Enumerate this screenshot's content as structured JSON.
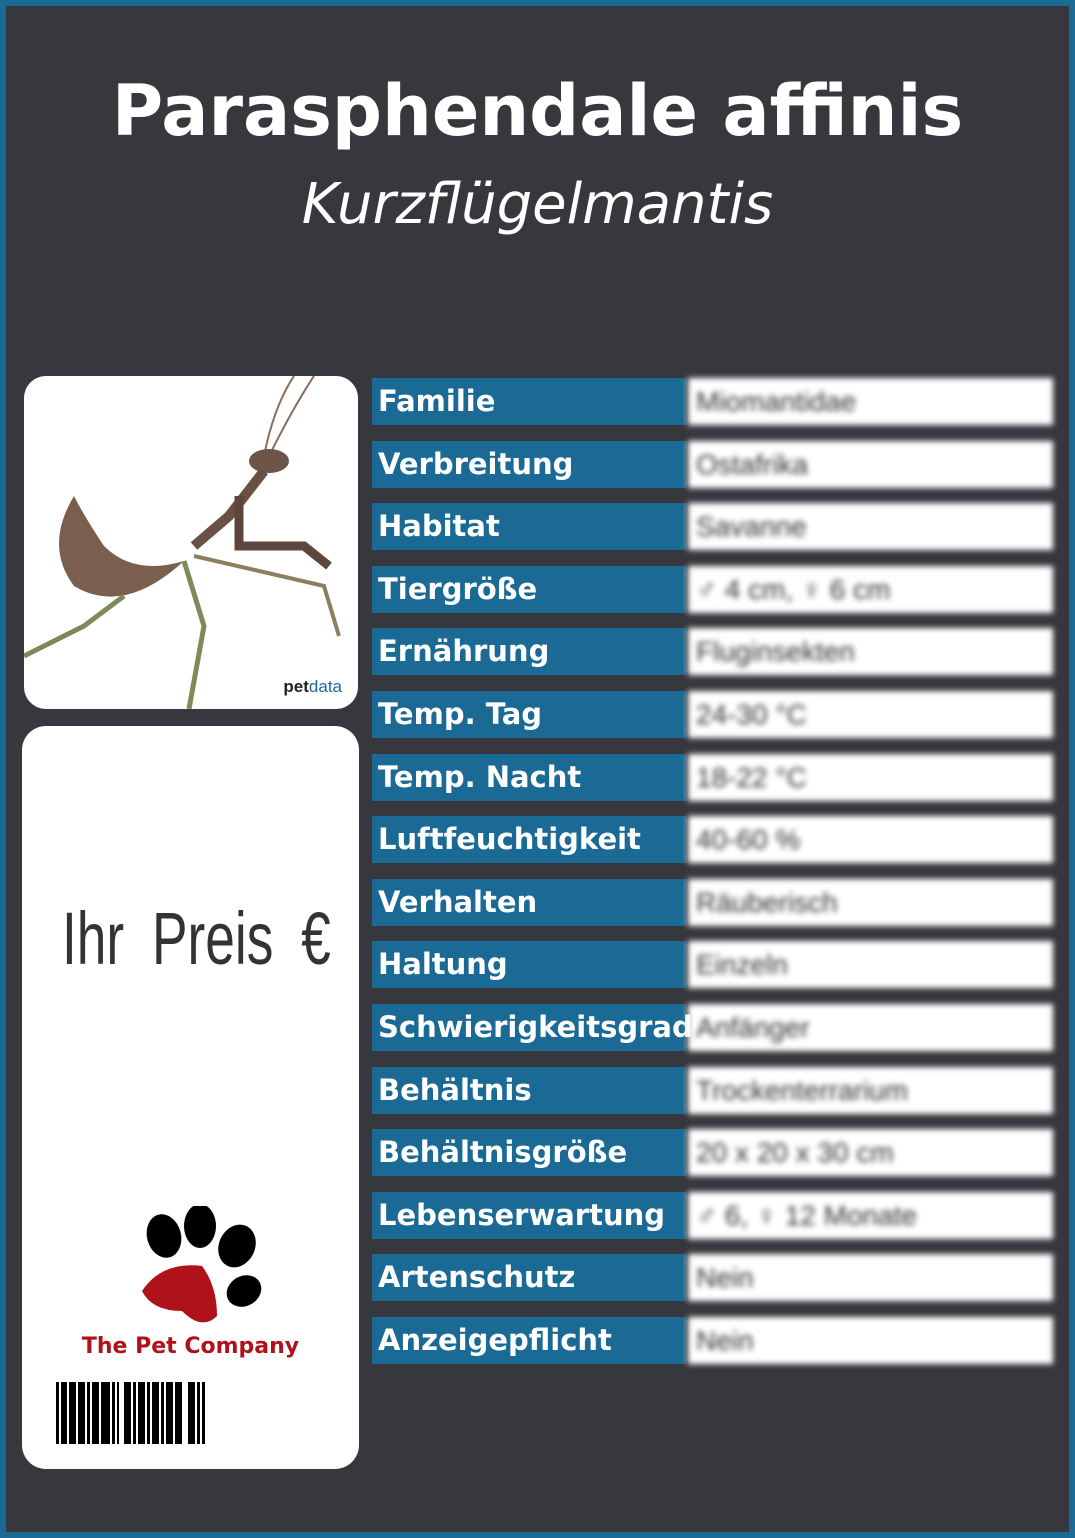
{
  "header": {
    "title": "Parasphendale affinis",
    "subtitle": "Kurzflügelmantis"
  },
  "photo": {
    "watermark_pet": "pet",
    "watermark_data": "data",
    "icon": "mantis-photo"
  },
  "price": {
    "label": "Ihr Preis €"
  },
  "brand": {
    "name": "The Pet Company",
    "icon": "paw-logo",
    "paw_color": "#b0121b"
  },
  "colors": {
    "background": "#37383d",
    "accent": "#1b6a95"
  },
  "facts": [
    {
      "label": "Familie",
      "value": "Miomantidae"
    },
    {
      "label": "Verbreitung",
      "value": "Ostafrika"
    },
    {
      "label": "Habitat",
      "value": "Savanne"
    },
    {
      "label": "Tiergröße",
      "value": "♂ 4 cm, ♀ 6 cm"
    },
    {
      "label": "Ernährung",
      "value": "Fluginsekten"
    },
    {
      "label": "Temp. Tag",
      "value": "24-30 °C"
    },
    {
      "label": "Temp. Nacht",
      "value": "18-22 °C"
    },
    {
      "label": "Luftfeuchtigkeit",
      "value": "40-60 %"
    },
    {
      "label": "Verhalten",
      "value": "Räuberisch"
    },
    {
      "label": "Haltung",
      "value": "Einzeln"
    },
    {
      "label": "Schwierigkeitsgrad",
      "value": "Anfänger"
    },
    {
      "label": "Behältnis",
      "value": "Trockenterrarium"
    },
    {
      "label": "Behältnisgröße",
      "value": "20 x 20 x 30 cm"
    },
    {
      "label": "Lebenserwartung",
      "value": "♂ 6, ♀ 12 Monate"
    },
    {
      "label": "Artenschutz",
      "value": "Nein"
    },
    {
      "label": "Anzeigepflicht",
      "value": "Nein"
    }
  ]
}
